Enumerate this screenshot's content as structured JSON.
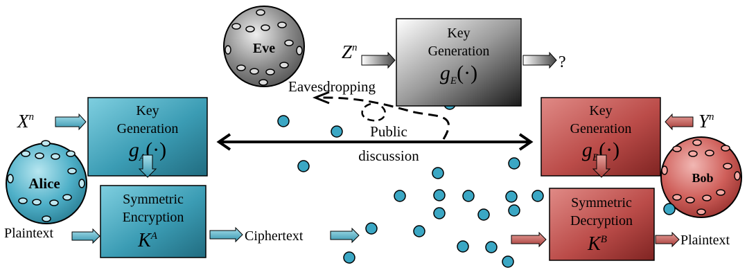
{
  "parties": {
    "eve": "Eve",
    "alice": "Alice",
    "bob": "Bob"
  },
  "inputs": {
    "alice": {
      "base": "X",
      "sup": "n"
    },
    "bob": {
      "base": "Y",
      "sup": "n"
    },
    "eve": {
      "base": "Z",
      "sup": "n"
    }
  },
  "key_gen_alice": {
    "line1": "Key",
    "line2": "Generation",
    "func": "g",
    "sub": "A",
    "arg": "(·)"
  },
  "key_gen_bob": {
    "line1": "Key",
    "line2": "Generation",
    "func": "g",
    "sub": "B",
    "arg": "(·)"
  },
  "key_gen_eve": {
    "line1": "Key",
    "line2": "Generation",
    "func": "g",
    "sub": "E",
    "arg": "(·)"
  },
  "encryption": {
    "line1": "Symmetric",
    "line2": "Encryption",
    "key": "K",
    "sup": "A"
  },
  "decryption": {
    "line1": "Symmetric",
    "line2": "Decryption",
    "key": "K",
    "sup": "B"
  },
  "labels": {
    "eavesdropping": "Eavesdropping",
    "public1": "Public",
    "public2": "discussion",
    "plaintext_in": "Plaintext",
    "ciphertext": "Ciphertext",
    "plaintext_out": "Plaintext",
    "question": "?"
  },
  "colors": {
    "alice_blue": "#3a9bb3",
    "bob_red": "#b84a48",
    "eve_gray": "#555555",
    "dot_blue": "#3ba7c4"
  }
}
